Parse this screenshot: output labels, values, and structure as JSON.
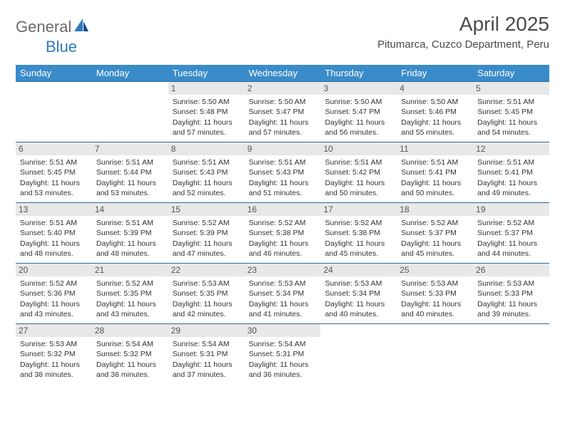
{
  "brand": {
    "left": "General",
    "right": "Blue"
  },
  "title": "April 2025",
  "location": "Pitumarca, Cuzco Department, Peru",
  "colors": {
    "header_bg": "#3a8bc9",
    "week_border": "#2d6aa0",
    "daynum_bg": "#e8e8e8",
    "brand_grey": "#6a6a6a",
    "brand_blue": "#2d79bd"
  },
  "weekdays": [
    "Sunday",
    "Monday",
    "Tuesday",
    "Wednesday",
    "Thursday",
    "Friday",
    "Saturday"
  ],
  "weeks": [
    [
      {
        "n": "",
        "empty": true
      },
      {
        "n": "",
        "empty": true
      },
      {
        "n": "1",
        "sr": "Sunrise: 5:50 AM",
        "ss": "Sunset: 5:48 PM",
        "dl": "Daylight: 11 hours and 57 minutes."
      },
      {
        "n": "2",
        "sr": "Sunrise: 5:50 AM",
        "ss": "Sunset: 5:47 PM",
        "dl": "Daylight: 11 hours and 57 minutes."
      },
      {
        "n": "3",
        "sr": "Sunrise: 5:50 AM",
        "ss": "Sunset: 5:47 PM",
        "dl": "Daylight: 11 hours and 56 minutes."
      },
      {
        "n": "4",
        "sr": "Sunrise: 5:50 AM",
        "ss": "Sunset: 5:46 PM",
        "dl": "Daylight: 11 hours and 55 minutes."
      },
      {
        "n": "5",
        "sr": "Sunrise: 5:51 AM",
        "ss": "Sunset: 5:45 PM",
        "dl": "Daylight: 11 hours and 54 minutes."
      }
    ],
    [
      {
        "n": "6",
        "sr": "Sunrise: 5:51 AM",
        "ss": "Sunset: 5:45 PM",
        "dl": "Daylight: 11 hours and 53 minutes."
      },
      {
        "n": "7",
        "sr": "Sunrise: 5:51 AM",
        "ss": "Sunset: 5:44 PM",
        "dl": "Daylight: 11 hours and 53 minutes."
      },
      {
        "n": "8",
        "sr": "Sunrise: 5:51 AM",
        "ss": "Sunset: 5:43 PM",
        "dl": "Daylight: 11 hours and 52 minutes."
      },
      {
        "n": "9",
        "sr": "Sunrise: 5:51 AM",
        "ss": "Sunset: 5:43 PM",
        "dl": "Daylight: 11 hours and 51 minutes."
      },
      {
        "n": "10",
        "sr": "Sunrise: 5:51 AM",
        "ss": "Sunset: 5:42 PM",
        "dl": "Daylight: 11 hours and 50 minutes."
      },
      {
        "n": "11",
        "sr": "Sunrise: 5:51 AM",
        "ss": "Sunset: 5:41 PM",
        "dl": "Daylight: 11 hours and 50 minutes."
      },
      {
        "n": "12",
        "sr": "Sunrise: 5:51 AM",
        "ss": "Sunset: 5:41 PM",
        "dl": "Daylight: 11 hours and 49 minutes."
      }
    ],
    [
      {
        "n": "13",
        "sr": "Sunrise: 5:51 AM",
        "ss": "Sunset: 5:40 PM",
        "dl": "Daylight: 11 hours and 48 minutes."
      },
      {
        "n": "14",
        "sr": "Sunrise: 5:51 AM",
        "ss": "Sunset: 5:39 PM",
        "dl": "Daylight: 11 hours and 48 minutes."
      },
      {
        "n": "15",
        "sr": "Sunrise: 5:52 AM",
        "ss": "Sunset: 5:39 PM",
        "dl": "Daylight: 11 hours and 47 minutes."
      },
      {
        "n": "16",
        "sr": "Sunrise: 5:52 AM",
        "ss": "Sunset: 5:38 PM",
        "dl": "Daylight: 11 hours and 46 minutes."
      },
      {
        "n": "17",
        "sr": "Sunrise: 5:52 AM",
        "ss": "Sunset: 5:38 PM",
        "dl": "Daylight: 11 hours and 45 minutes."
      },
      {
        "n": "18",
        "sr": "Sunrise: 5:52 AM",
        "ss": "Sunset: 5:37 PM",
        "dl": "Daylight: 11 hours and 45 minutes."
      },
      {
        "n": "19",
        "sr": "Sunrise: 5:52 AM",
        "ss": "Sunset: 5:37 PM",
        "dl": "Daylight: 11 hours and 44 minutes."
      }
    ],
    [
      {
        "n": "20",
        "sr": "Sunrise: 5:52 AM",
        "ss": "Sunset: 5:36 PM",
        "dl": "Daylight: 11 hours and 43 minutes."
      },
      {
        "n": "21",
        "sr": "Sunrise: 5:52 AM",
        "ss": "Sunset: 5:35 PM",
        "dl": "Daylight: 11 hours and 43 minutes."
      },
      {
        "n": "22",
        "sr": "Sunrise: 5:53 AM",
        "ss": "Sunset: 5:35 PM",
        "dl": "Daylight: 11 hours and 42 minutes."
      },
      {
        "n": "23",
        "sr": "Sunrise: 5:53 AM",
        "ss": "Sunset: 5:34 PM",
        "dl": "Daylight: 11 hours and 41 minutes."
      },
      {
        "n": "24",
        "sr": "Sunrise: 5:53 AM",
        "ss": "Sunset: 5:34 PM",
        "dl": "Daylight: 11 hours and 40 minutes."
      },
      {
        "n": "25",
        "sr": "Sunrise: 5:53 AM",
        "ss": "Sunset: 5:33 PM",
        "dl": "Daylight: 11 hours and 40 minutes."
      },
      {
        "n": "26",
        "sr": "Sunrise: 5:53 AM",
        "ss": "Sunset: 5:33 PM",
        "dl": "Daylight: 11 hours and 39 minutes."
      }
    ],
    [
      {
        "n": "27",
        "sr": "Sunrise: 5:53 AM",
        "ss": "Sunset: 5:32 PM",
        "dl": "Daylight: 11 hours and 38 minutes."
      },
      {
        "n": "28",
        "sr": "Sunrise: 5:54 AM",
        "ss": "Sunset: 5:32 PM",
        "dl": "Daylight: 11 hours and 38 minutes."
      },
      {
        "n": "29",
        "sr": "Sunrise: 5:54 AM",
        "ss": "Sunset: 5:31 PM",
        "dl": "Daylight: 11 hours and 37 minutes."
      },
      {
        "n": "30",
        "sr": "Sunrise: 5:54 AM",
        "ss": "Sunset: 5:31 PM",
        "dl": "Daylight: 11 hours and 36 minutes."
      },
      {
        "n": "",
        "empty": true
      },
      {
        "n": "",
        "empty": true
      },
      {
        "n": "",
        "empty": true
      }
    ]
  ]
}
